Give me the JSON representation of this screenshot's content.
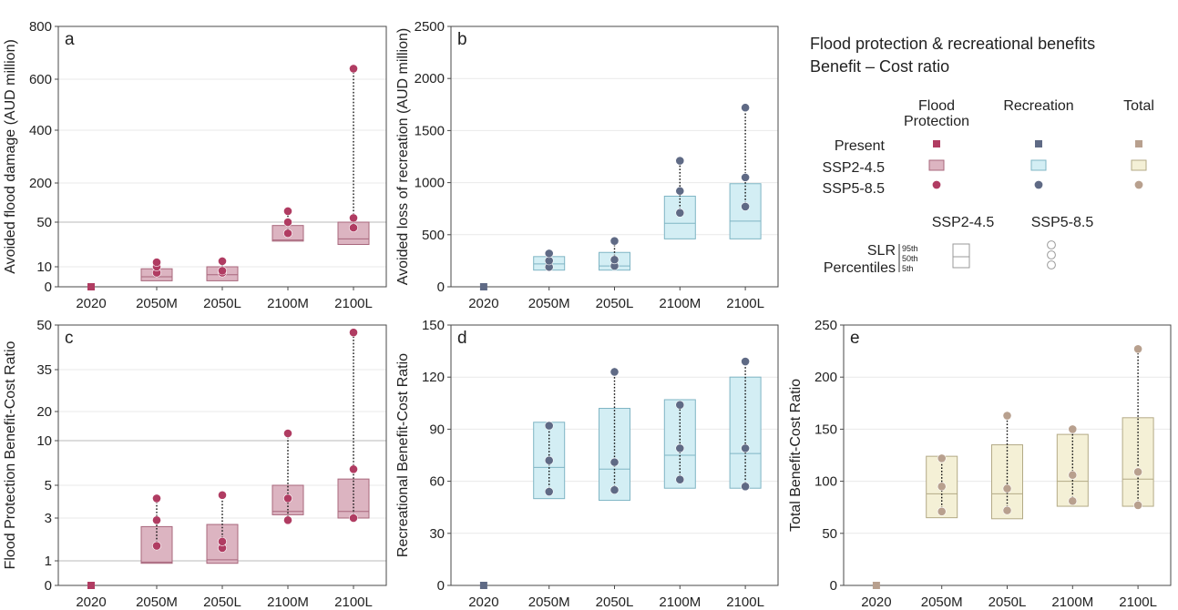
{
  "legend": {
    "title_line1": "Flood protection & recreational benefits",
    "title_line2": "Benefit – Cost ratio",
    "col_flood_1": "Flood",
    "col_flood_2": "Protection",
    "col_recreation": "Recreation",
    "col_total": "Total",
    "row_present": "Present",
    "row_ssp2": "SSP2-4.5",
    "row_ssp5": "SSP5-8.5",
    "ssp2_header": "SSP2-4.5",
    "ssp5_header": "SSP5-8.5",
    "slr_1": "SLR",
    "slr_2": "Percentiles",
    "pct_95": "95th",
    "pct_50": "50th",
    "pct_5": "5th"
  },
  "colors": {
    "flood_fill": "#dcb4c1",
    "flood_stroke": "#a8677c",
    "flood_marker": "#b03c62",
    "rec_fill": "#d3eef4",
    "rec_stroke": "#7fb5c4",
    "rec_marker": "#5f6a85",
    "total_fill": "#f4f0d6",
    "total_stroke": "#b3aa86",
    "total_marker": "#b8a08e"
  },
  "chart_data": [
    {
      "panel": "a",
      "type": "box",
      "ylabel": "Avoided flood damage (AUD million)",
      "scale": "piecewise",
      "yticks": [
        0,
        10,
        50,
        200,
        400,
        600,
        800
      ],
      "refline": 50,
      "categories": [
        "2020",
        "2050M",
        "2050L",
        "2100M",
        "2100L"
      ],
      "present": 0,
      "ssp2_box": [
        null,
        [
          3,
          5,
          9
        ],
        [
          3,
          6,
          10
        ],
        [
          33,
          34,
          47
        ],
        [
          30,
          35,
          50
        ]
      ],
      "ssp5_points": [
        null,
        [
          7,
          10,
          14
        ],
        [
          7,
          8,
          15
        ],
        [
          40,
          50,
          92
        ],
        [
          45,
          66,
          640
        ]
      ],
      "color": "flood"
    },
    {
      "panel": "b",
      "type": "box",
      "ylabel": "Avoided loss of recreation (AUD million)",
      "scale": "linear",
      "yticks": [
        0,
        500,
        1000,
        1500,
        2000,
        2500
      ],
      "ylim": [
        0,
        2500
      ],
      "categories": [
        "2020",
        "2050M",
        "2050L",
        "2100M",
        "2100L"
      ],
      "present": 0,
      "ssp2_box": [
        null,
        [
          160,
          220,
          290
        ],
        [
          160,
          200,
          330
        ],
        [
          460,
          610,
          870
        ],
        [
          460,
          630,
          990
        ]
      ],
      "ssp5_points": [
        null,
        [
          190,
          250,
          320
        ],
        [
          200,
          260,
          440
        ],
        [
          710,
          920,
          1210
        ],
        [
          770,
          1050,
          1720
        ]
      ],
      "color": "rec"
    },
    {
      "panel": "c",
      "type": "box",
      "ylabel": "Flood Protection Benefit-Cost Ratio",
      "scale": "piecewise",
      "yticks": [
        0,
        1,
        3,
        5,
        10,
        20,
        35,
        50
      ],
      "refline": [
        1,
        10
      ],
      "categories": [
        "2020",
        "2050M",
        "2050L",
        "2100M",
        "2100L"
      ],
      "present": 0,
      "ssp2_box": [
        null,
        [
          0.9,
          0.95,
          2.6
        ],
        [
          0.9,
          1.05,
          2.7
        ],
        [
          3.2,
          3.4,
          5.0
        ],
        [
          3.0,
          3.4,
          5.7
        ]
      ],
      "ssp5_points": [
        null,
        [
          1.7,
          2.9,
          4.2
        ],
        [
          1.6,
          1.9,
          4.4
        ],
        [
          2.9,
          4.2,
          12.5
        ],
        [
          3.0,
          6.8,
          47.5
        ]
      ],
      "color": "flood"
    },
    {
      "panel": "d",
      "type": "box",
      "ylabel": "Recreational Benefit-Cost Ratio",
      "scale": "linear",
      "yticks": [
        0,
        30,
        60,
        90,
        120,
        150
      ],
      "ylim": [
        0,
        150
      ],
      "categories": [
        "2020",
        "2050M",
        "2050L",
        "2100M",
        "2100L"
      ],
      "present": 0,
      "ssp2_box": [
        null,
        [
          50,
          68,
          94
        ],
        [
          49,
          67,
          102
        ],
        [
          56,
          75,
          107
        ],
        [
          56,
          76,
          120
        ]
      ],
      "ssp5_points": [
        null,
        [
          54,
          72,
          92
        ],
        [
          55,
          71,
          123
        ],
        [
          61,
          79,
          104
        ],
        [
          57,
          79,
          129
        ]
      ],
      "color": "rec"
    },
    {
      "panel": "e",
      "type": "box",
      "ylabel": "Total Benefit-Cost Ratio",
      "scale": "linear",
      "yticks": [
        0,
        50,
        100,
        150,
        200,
        250
      ],
      "ylim": [
        0,
        250
      ],
      "categories": [
        "2020",
        "2050M",
        "2050L",
        "2100M",
        "2100L"
      ],
      "present": 0,
      "ssp2_box": [
        null,
        [
          65,
          88,
          124
        ],
        [
          64,
          88,
          135
        ],
        [
          76,
          100,
          145
        ],
        [
          76,
          102,
          161
        ]
      ],
      "ssp5_points": [
        null,
        [
          71,
          95,
          122
        ],
        [
          72,
          93,
          163
        ],
        [
          81,
          106,
          150
        ],
        [
          77,
          109,
          227
        ]
      ],
      "color": "total"
    }
  ]
}
